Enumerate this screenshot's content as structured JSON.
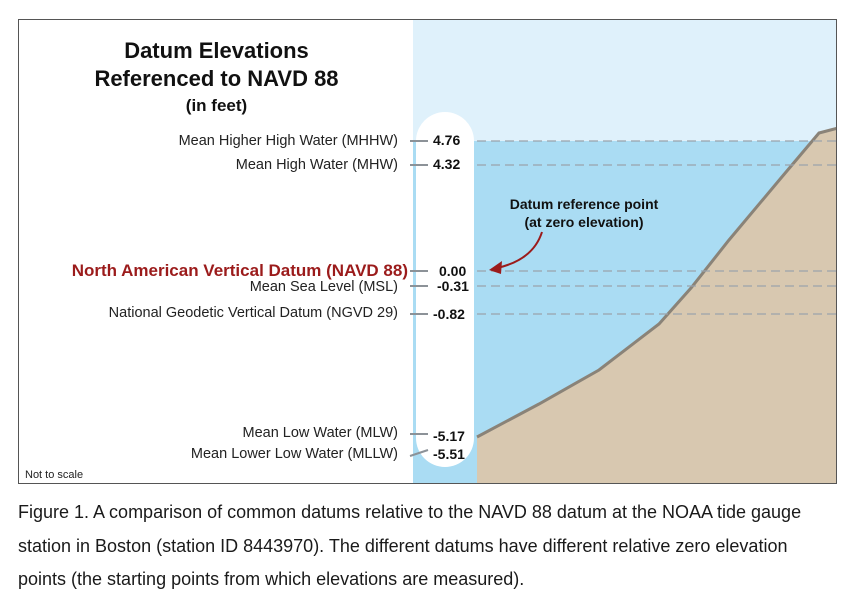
{
  "title": {
    "line1": "Datum Elevations",
    "line2": "Referenced to NAVD 88",
    "line3": "(in feet)"
  },
  "datums": [
    {
      "label": "Mean Higher High Water (MHHW)",
      "value": "4.76"
    },
    {
      "label": "Mean High Water (MHW)",
      "value": "4.32"
    },
    {
      "label": "North American Vertical Datum (NAVD 88)",
      "value": "0.00"
    },
    {
      "label": "Mean Sea Level (MSL)",
      "value": "-0.31"
    },
    {
      "label": "National Geodetic Vertical Datum (NGVD 29)",
      "value": "-0.82"
    },
    {
      "label": "Mean Low Water (MLW)",
      "value": "-5.17"
    },
    {
      "label": "Mean Lower Low Water (MLLW)",
      "value": "-5.51"
    }
  ],
  "reference_note": {
    "line1": "Datum reference point",
    "line2": "(at zero elevation)"
  },
  "scale_note": "Not to scale",
  "caption": "Figure 1. A comparison of common datums relative to the NAVD 88 datum at the NOAA tide gauge station in Boston (station ID 8443970). The different datums have different relative zero elevation points (the starting points from which elevations are measured).",
  "colors": {
    "sky": "#dff1fb",
    "water": "#aadcf3",
    "ground": "#d8c8b0",
    "ground_edge": "#8a8378",
    "highlight": "#9b1b1b",
    "gauge": "#ffffff"
  }
}
